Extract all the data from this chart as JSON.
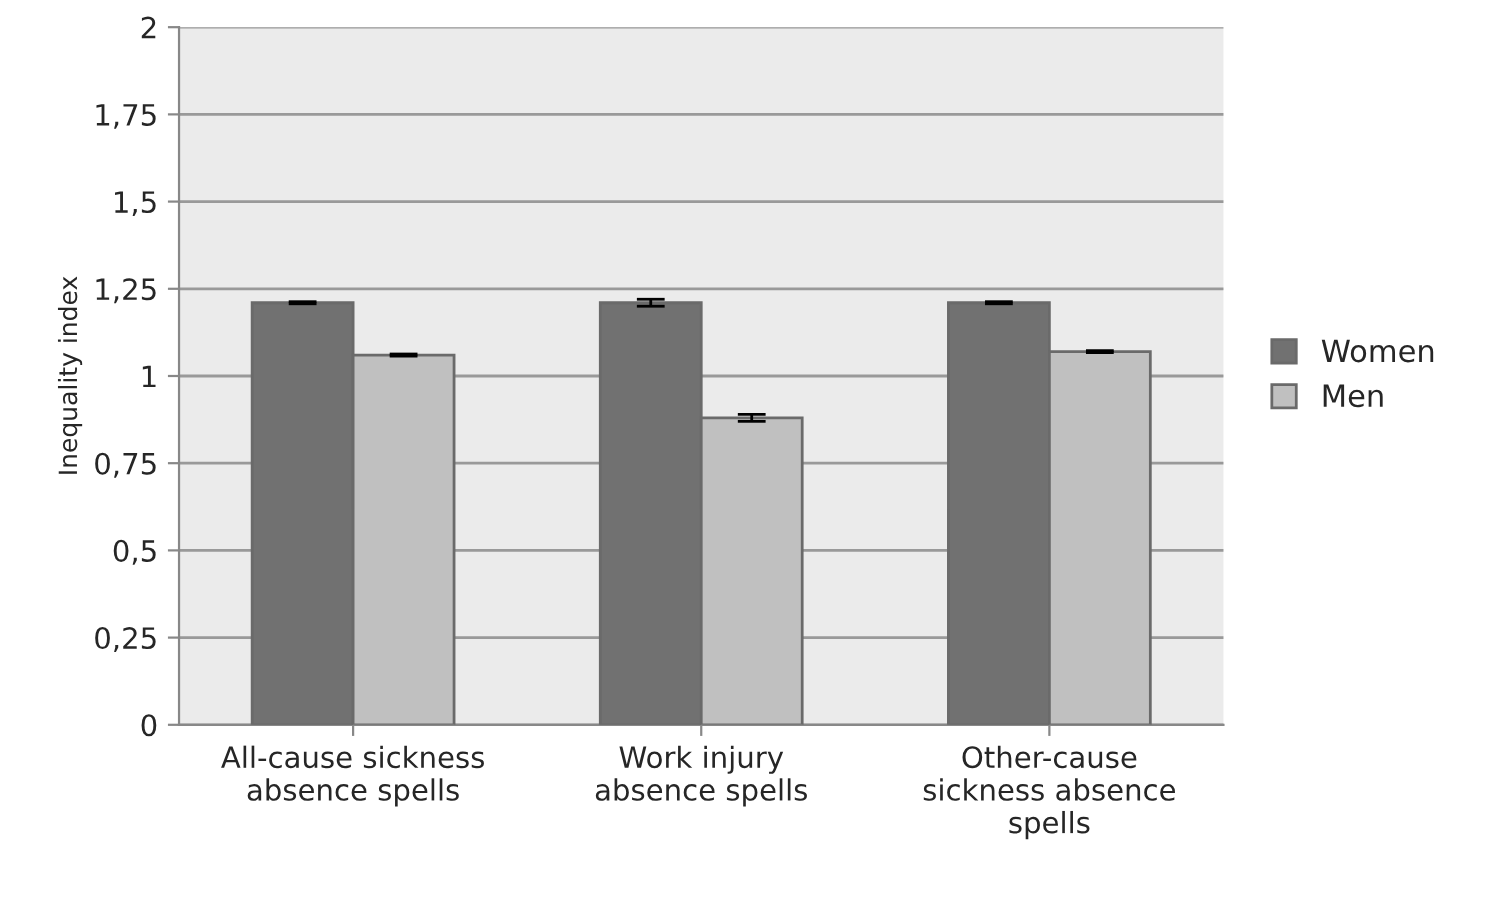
{
  "chart_data": {
    "type": "bar",
    "ylabel": "Inequality index",
    "categories": [
      "All-cause sickness\nabsence spells",
      "Work injury\nabsence spells",
      "Other-cause\nsickness absence\nspells"
    ],
    "series": [
      {
        "name": "Women",
        "color": "#717171",
        "values": [
          1.21,
          1.21,
          1.21
        ],
        "errors": [
          0.003,
          0.01,
          0.003
        ]
      },
      {
        "name": "Men",
        "color": "#c0c0c0",
        "values": [
          1.06,
          0.88,
          1.07
        ],
        "errors": [
          0.003,
          0.01,
          0.003
        ]
      }
    ],
    "ylim": [
      0,
      2
    ],
    "yticks": [
      0,
      {
        "value": 0.25,
        "label": "0,25"
      },
      {
        "value": 0.5,
        "label": "0,5"
      },
      {
        "value": 0.75,
        "label": "0,75"
      },
      1,
      {
        "value": 1.25,
        "label": "1,25"
      },
      {
        "value": 1.5,
        "label": "1,5"
      },
      {
        "value": 1.75,
        "label": "1,75"
      },
      2
    ],
    "grid": "y",
    "legend": "right"
  }
}
